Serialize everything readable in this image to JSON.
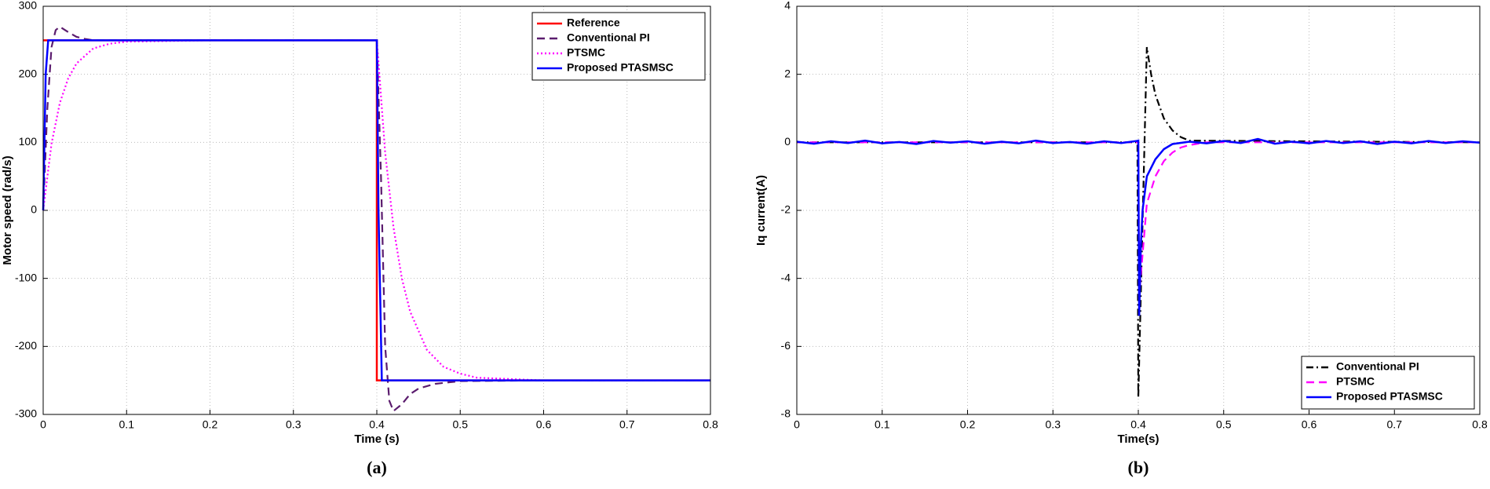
{
  "chart_data": [
    {
      "type": "line",
      "xlabel": "Time (s)",
      "ylabel": "Motor speed (rad/s)",
      "panel_label": "(a)",
      "xlim": [
        0,
        0.8
      ],
      "xticks": [
        0,
        0.1,
        0.2,
        0.3,
        0.4,
        0.5,
        0.6,
        0.7,
        0.8
      ],
      "ylim": [
        -300,
        300
      ],
      "yticks": [
        -300,
        -200,
        -100,
        0,
        100,
        200,
        300
      ],
      "grid": true,
      "legend": "upper right",
      "series": [
        {
          "name": "Reference",
          "color": "#ff0000",
          "style": "solid",
          "x": [
            0,
            0.4,
            0.4,
            0.8
          ],
          "values": [
            250,
            250,
            -250,
            -250
          ]
        },
        {
          "name": "Conventional PI",
          "color": "#5b1c6e",
          "style": "dashed",
          "x": [
            0,
            0.005,
            0.01,
            0.015,
            0.02,
            0.03,
            0.04,
            0.05,
            0.06,
            0.08,
            0.1,
            0.2,
            0.3,
            0.4,
            0.405,
            0.41,
            0.415,
            0.42,
            0.43,
            0.44,
            0.45,
            0.47,
            0.5,
            0.6,
            0.8
          ],
          "values": [
            0,
            150,
            240,
            265,
            270,
            262,
            255,
            252,
            250,
            250,
            250,
            250,
            250,
            250,
            50,
            -200,
            -280,
            -295,
            -285,
            -270,
            -262,
            -255,
            -251,
            -250,
            -250
          ]
        },
        {
          "name": "PTSMC",
          "color": "#ff00ff",
          "style": "dotted",
          "x": [
            0,
            0.01,
            0.02,
            0.03,
            0.04,
            0.06,
            0.08,
            0.1,
            0.2,
            0.4,
            0.41,
            0.42,
            0.43,
            0.44,
            0.46,
            0.48,
            0.5,
            0.52,
            0.6,
            0.8
          ],
          "values": [
            0,
            98,
            158,
            194,
            216,
            238,
            245,
            248,
            250,
            250,
            85,
            -25,
            -100,
            -149,
            -205,
            -230,
            -240,
            -246,
            -250,
            -250
          ]
        },
        {
          "name": "Proposed PTASMSC",
          "color": "#0000ff",
          "style": "solid",
          "x": [
            0,
            0.003,
            0.006,
            0.4,
            0.402,
            0.406,
            0.8
          ],
          "values": [
            0,
            200,
            250,
            250,
            0,
            -250,
            -250
          ]
        }
      ]
    },
    {
      "type": "line",
      "xlabel": "Time(s)",
      "ylabel": "Iq current(A)",
      "panel_label": "(b)",
      "xlim": [
        0,
        0.8
      ],
      "xticks": [
        0,
        0.1,
        0.2,
        0.3,
        0.4,
        0.5,
        0.6,
        0.7,
        0.8
      ],
      "ylim": [
        -8,
        4
      ],
      "yticks": [
        -8,
        -6,
        -4,
        -2,
        0,
        2,
        4
      ],
      "grid": true,
      "legend": "lower right",
      "series": [
        {
          "name": "Conventional PI",
          "color": "#000000",
          "style": "dashdot",
          "x": [
            0,
            0.399,
            0.4,
            0.41,
            0.415,
            0.42,
            0.43,
            0.44,
            0.45,
            0.46,
            0.8
          ],
          "values": [
            0,
            0,
            -7.5,
            2.8,
            2.0,
            1.4,
            0.7,
            0.35,
            0.15,
            0.05,
            0
          ]
        },
        {
          "name": "PTSMC",
          "color": "#ff00ff",
          "style": "dashed",
          "x": [
            0,
            0.4,
            0.401,
            0.41,
            0.42,
            0.43,
            0.44,
            0.45,
            0.46,
            0.48,
            0.8
          ],
          "values": [
            0,
            0,
            -4.5,
            -1.8,
            -1.0,
            -0.55,
            -0.3,
            -0.15,
            -0.08,
            0,
            0
          ]
        },
        {
          "name": "Proposed PTASMSC",
          "color": "#0000ff",
          "style": "solid",
          "x": [
            0,
            0.02,
            0.04,
            0.06,
            0.08,
            0.1,
            0.12,
            0.14,
            0.16,
            0.18,
            0.2,
            0.22,
            0.24,
            0.26,
            0.28,
            0.3,
            0.32,
            0.34,
            0.36,
            0.38,
            0.398,
            0.4,
            0.401,
            0.403,
            0.405,
            0.41,
            0.42,
            0.43,
            0.44,
            0.46,
            0.48,
            0.5,
            0.52,
            0.54,
            0.56,
            0.58,
            0.6,
            0.62,
            0.64,
            0.66,
            0.68,
            0.7,
            0.72,
            0.74,
            0.76,
            0.78,
            0.8
          ],
          "values": [
            0.02,
            -0.04,
            0.03,
            -0.02,
            0.05,
            -0.03,
            0.01,
            -0.05,
            0.04,
            -0.01,
            0.03,
            -0.04,
            0.02,
            -0.03,
            0.05,
            -0.02,
            0.01,
            -0.04,
            0.03,
            -0.02,
            0.04,
            0.05,
            -5.1,
            -3,
            -2,
            -1,
            -0.5,
            -0.2,
            -0.05,
            0.02,
            -0.03,
            0.04,
            -0.02,
            0.1,
            -0.04,
            0.02,
            -0.03,
            0.04,
            -0.02,
            0.03,
            -0.05,
            0.02,
            -0.03,
            0.04,
            -0.02,
            0.03,
            -0.01
          ]
        }
      ]
    }
  ]
}
